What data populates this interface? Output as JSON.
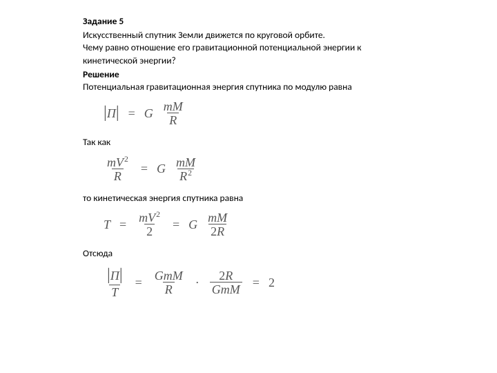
{
  "colors": {
    "text": "#000000",
    "formula": "#555555",
    "background": "#ffffff",
    "rule": "#555555"
  },
  "typography": {
    "body_family": "Segoe UI / Calibri, sans-serif",
    "body_size_pt": 10.5,
    "formula_family": "Times New Roman, serif",
    "formula_size_pt": 13,
    "formula_style": "italic",
    "bold_weight": 700
  },
  "heading": "Задание 5",
  "problem_line1": "Искусственный спутник Земли движется по круговой орбите.",
  "problem_line2": "Чему равно отношение его гравитационной потенциальной энергии к",
  "problem_line3": "кинетической энергии?",
  "solution_heading": "Решение",
  "solution_line1": "Потенциальная гравитационная энергия спутника по модулю равна",
  "since_label": "Так как",
  "then_line": "то кинетическая энергия спутника равна",
  "hence_label": "Отсюда",
  "formulas": {
    "f1": {
      "abs_var": "П",
      "eq": "=",
      "G": "G",
      "num": "mM",
      "den": "R"
    },
    "f2": {
      "lhs_num": "mV",
      "lhs_num_sup": "2",
      "lhs_den": "R",
      "eq": "=",
      "G": "G",
      "rhs_num": "mM",
      "rhs_den": "R",
      "rhs_den_sup": "2"
    },
    "f3": {
      "T": "T",
      "eq1": "=",
      "mid_num": "mV",
      "mid_num_sup": "2",
      "mid_den": "2",
      "eq2": "=",
      "G": "G",
      "rhs_num": "mM",
      "rhs_den": "2R",
      "rhs_den_digit": "2",
      "rhs_den_var": "R"
    },
    "f4": {
      "abs_var": "П",
      "den_var": "T",
      "eq1": "=",
      "a_num": "GmM",
      "a_den": "R",
      "dot": "·",
      "b_num_digit": "2",
      "b_num_var": "R",
      "b_den": "GmM",
      "eq2": "=",
      "result": "2"
    }
  }
}
